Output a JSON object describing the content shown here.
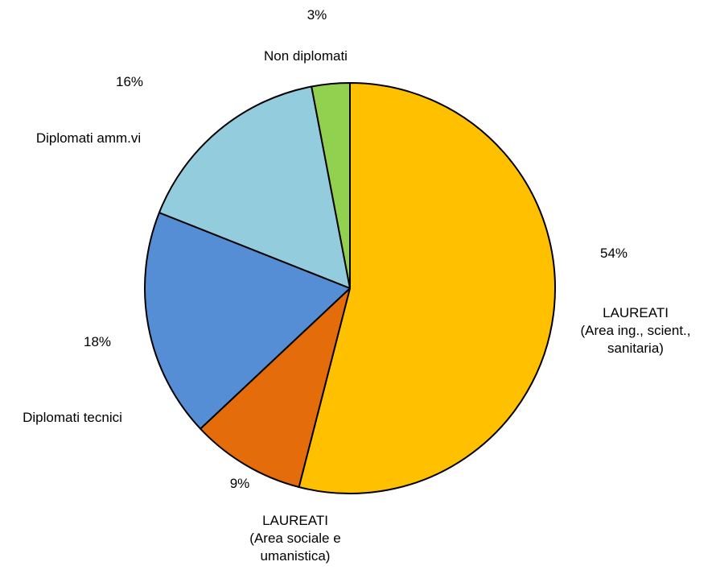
{
  "chart_data": {
    "type": "pie",
    "start": "12 o'clock",
    "direction": "clockwise",
    "slices": [
      {
        "label": "LAUREATI\n(Area ing., scient.,\nsanitaria)",
        "value": 54,
        "pct_label": "54%",
        "color": "#FFC000"
      },
      {
        "label": "LAUREATI\n(Area sociale e\numanistica)",
        "value": 9,
        "pct_label": "9%",
        "color": "#E46C0A"
      },
      {
        "label": "Diplomati tecnici",
        "value": 18,
        "pct_label": "18%",
        "color": "#558ED5"
      },
      {
        "label": "Diplomati amm.vi",
        "value": 16,
        "pct_label": "16%",
        "color": "#93CDDD"
      },
      {
        "label": "Non diplomati",
        "value": 3,
        "pct_label": "3%",
        "color": "#92D050"
      }
    ],
    "stroke": "#000000"
  }
}
